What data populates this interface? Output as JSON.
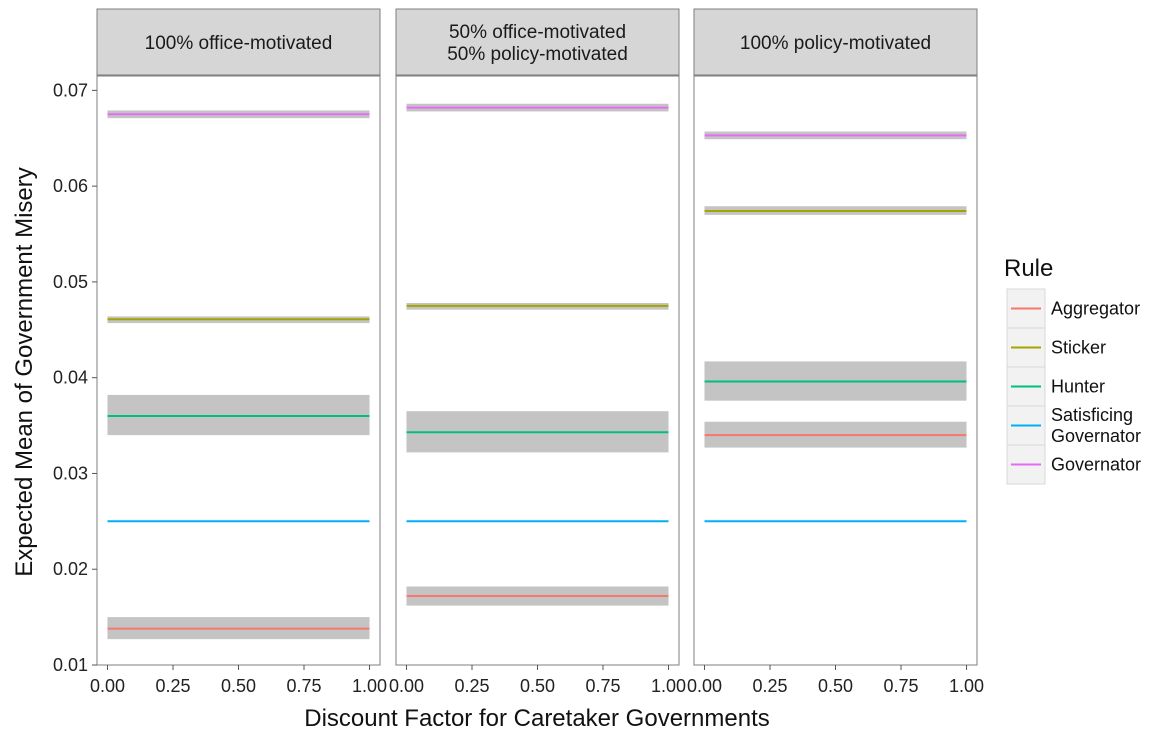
{
  "chart_data": {
    "type": "line",
    "xlabel": "Discount Factor for Caretaker Governments",
    "ylabel": "Expected Mean of Government Misery",
    "x_ticks": [
      "0.00",
      "0.25",
      "0.50",
      "0.75",
      "1.00"
    ],
    "x_tick_values": [
      0,
      0.25,
      0.5,
      0.75,
      1
    ],
    "y_ticks": [
      "0.01",
      "0.02",
      "0.03",
      "0.04",
      "0.05",
      "0.06",
      "0.07"
    ],
    "y_tick_values": [
      0.01,
      0.02,
      0.03,
      0.04,
      0.05,
      0.06,
      0.07
    ],
    "xlim": [
      -0.04,
      1.04
    ],
    "ylim": [
      0.01,
      0.0715
    ],
    "grid": false,
    "legend": {
      "title": "Rule",
      "position": "right",
      "entries": [
        {
          "label_lines": [
            "Aggregator"
          ],
          "color": "#F8766D"
        },
        {
          "label_lines": [
            "Sticker"
          ],
          "color": "#A3A500"
        },
        {
          "label_lines": [
            "Hunter"
          ],
          "color": "#00BF7D"
        },
        {
          "label_lines": [
            "Satisficing",
            "Governator"
          ],
          "color": "#00B0F6"
        },
        {
          "label_lines": [
            "Governator"
          ],
          "color": "#E76BF3"
        }
      ]
    },
    "ribbon_color": "#c4c4c4",
    "panels": [
      {
        "strip_lines": [
          "100% office-motivated"
        ],
        "series": [
          {
            "name": "Governator",
            "color": "#E76BF3",
            "x": [
              0,
              1
            ],
            "y": [
              0.0675,
              0.0675
            ],
            "ci": [
              0.0671,
              0.0679
            ]
          },
          {
            "name": "Sticker",
            "color": "#A3A500",
            "x": [
              0,
              1
            ],
            "y": [
              0.0461,
              0.0461
            ],
            "ci": [
              0.0457,
              0.0464
            ]
          },
          {
            "name": "Hunter",
            "color": "#00BF7D",
            "x": [
              0,
              1
            ],
            "y": [
              0.036,
              0.036
            ],
            "ci": [
              0.034,
              0.0382
            ]
          },
          {
            "name": "Satisficing Governator",
            "color": "#00B0F6",
            "x": [
              0,
              1
            ],
            "y": [
              0.025,
              0.025
            ],
            "ci": [
              0.025,
              0.025
            ]
          },
          {
            "name": "Aggregator",
            "color": "#F8766D",
            "x": [
              0,
              1
            ],
            "y": [
              0.0138,
              0.0138
            ],
            "ci": [
              0.0127,
              0.015
            ]
          }
        ]
      },
      {
        "strip_lines": [
          "50% office-motivated",
          "50% policy-motivated"
        ],
        "series": [
          {
            "name": "Governator",
            "color": "#E76BF3",
            "x": [
              0,
              1
            ],
            "y": [
              0.0682,
              0.0682
            ],
            "ci": [
              0.0678,
              0.0686
            ]
          },
          {
            "name": "Sticker",
            "color": "#A3A500",
            "x": [
              0,
              1
            ],
            "y": [
              0.0475,
              0.0475
            ],
            "ci": [
              0.0471,
              0.0478
            ]
          },
          {
            "name": "Hunter",
            "color": "#00BF7D",
            "x": [
              0,
              1
            ],
            "y": [
              0.0343,
              0.0343
            ],
            "ci": [
              0.0322,
              0.0365
            ]
          },
          {
            "name": "Satisficing Governator",
            "color": "#00B0F6",
            "x": [
              0,
              1
            ],
            "y": [
              0.025,
              0.025
            ],
            "ci": [
              0.025,
              0.025
            ]
          },
          {
            "name": "Aggregator",
            "color": "#F8766D",
            "x": [
              0,
              1
            ],
            "y": [
              0.0172,
              0.0172
            ],
            "ci": [
              0.0162,
              0.0182
            ]
          }
        ]
      },
      {
        "strip_lines": [
          "100% policy-motivated"
        ],
        "series": [
          {
            "name": "Governator",
            "color": "#E76BF3",
            "x": [
              0,
              1
            ],
            "y": [
              0.0653,
              0.0653
            ],
            "ci": [
              0.0649,
              0.0657
            ]
          },
          {
            "name": "Sticker",
            "color": "#A3A500",
            "x": [
              0,
              1
            ],
            "y": [
              0.0574,
              0.0574
            ],
            "ci": [
              0.057,
              0.0579
            ]
          },
          {
            "name": "Hunter",
            "color": "#00BF7D",
            "x": [
              0,
              1
            ],
            "y": [
              0.0396,
              0.0396
            ],
            "ci": [
              0.0376,
              0.0417
            ]
          },
          {
            "name": "Satisficing Governator",
            "color": "#00B0F6",
            "x": [
              0,
              1
            ],
            "y": [
              0.025,
              0.025
            ],
            "ci": [
              0.025,
              0.025
            ]
          },
          {
            "name": "Aggregator",
            "color": "#F8766D",
            "x": [
              0,
              1
            ],
            "y": [
              0.034,
              0.034
            ],
            "ci": [
              0.0327,
              0.0354
            ]
          }
        ]
      }
    ]
  }
}
